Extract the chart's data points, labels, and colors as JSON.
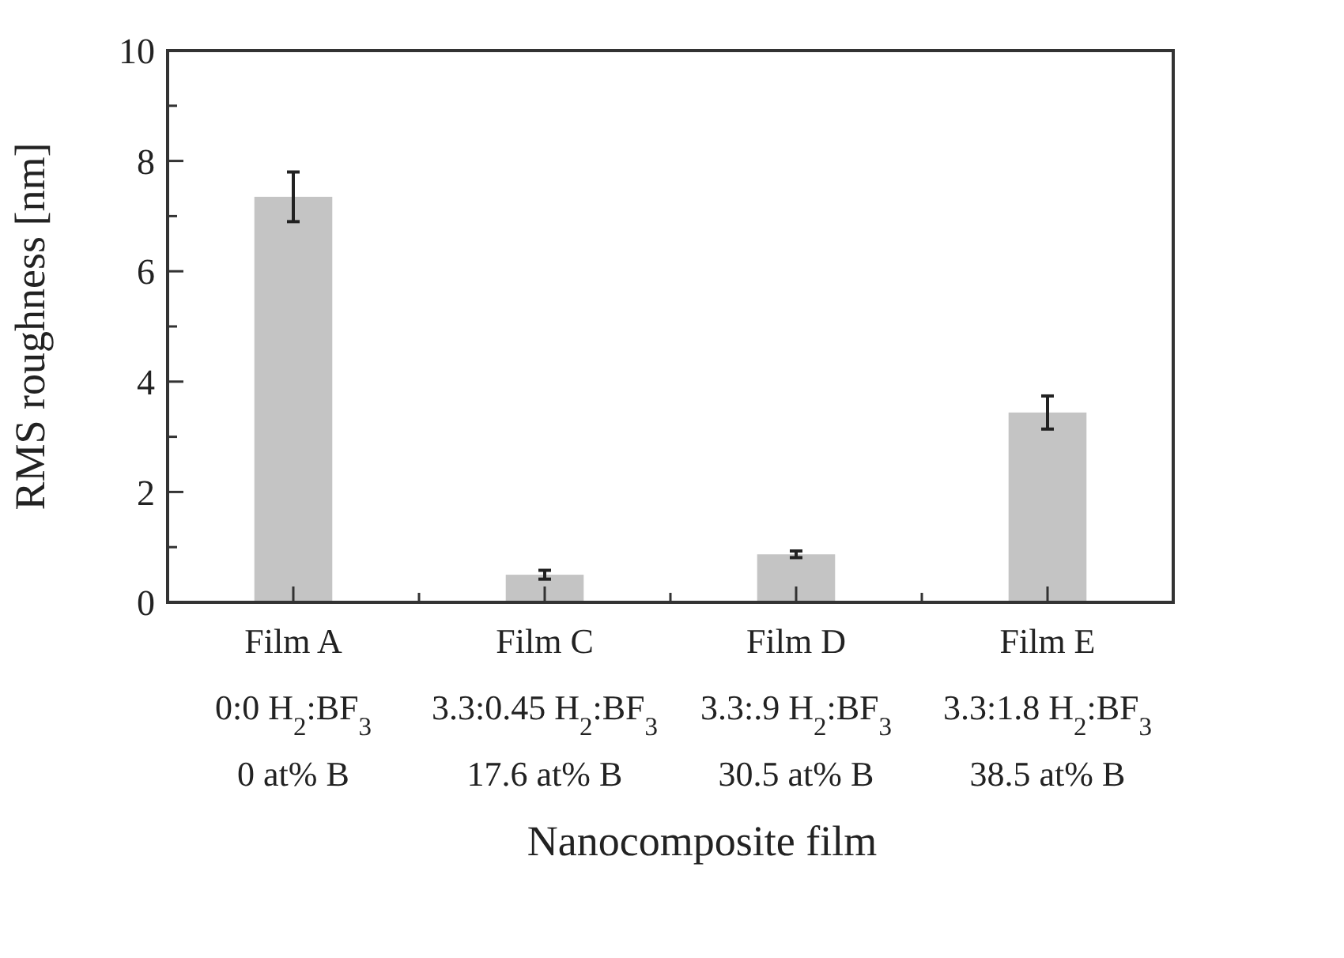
{
  "chart_data": {
    "type": "bar",
    "xlabel": "Nanocomposite film",
    "ylabel": "RMS roughness [nm]",
    "categories": [
      "Film A\n0:0 H$_{2}$:BF$_{3}$\n0 at% B",
      "Film C\n3.3:0.45 H$_{2}$:BF$_{3}$\n17.6 at% B",
      "Film D\n3.3:.9 H$_{2}$:BF$_{3}$\n30.5 at% B",
      "Film E\n3.3:1.8 H$_{2}$:BF$_{3}$\n38.5 at% B"
    ],
    "values": [
      7.35,
      0.5,
      0.87,
      3.44
    ],
    "errors": [
      0.45,
      0.08,
      0.06,
      0.3
    ],
    "color": "#c4c4c4",
    "ylim": [
      0,
      10
    ],
    "yticks": [
      0,
      {
        "value": 1,
        "label": null
      },
      2,
      {
        "value": 3,
        "label": null
      },
      4,
      {
        "value": 5,
        "label": null
      },
      6,
      {
        "value": 7,
        "label": null
      },
      8,
      {
        "value": 9,
        "label": null
      },
      10
    ],
    "grid": false
  }
}
